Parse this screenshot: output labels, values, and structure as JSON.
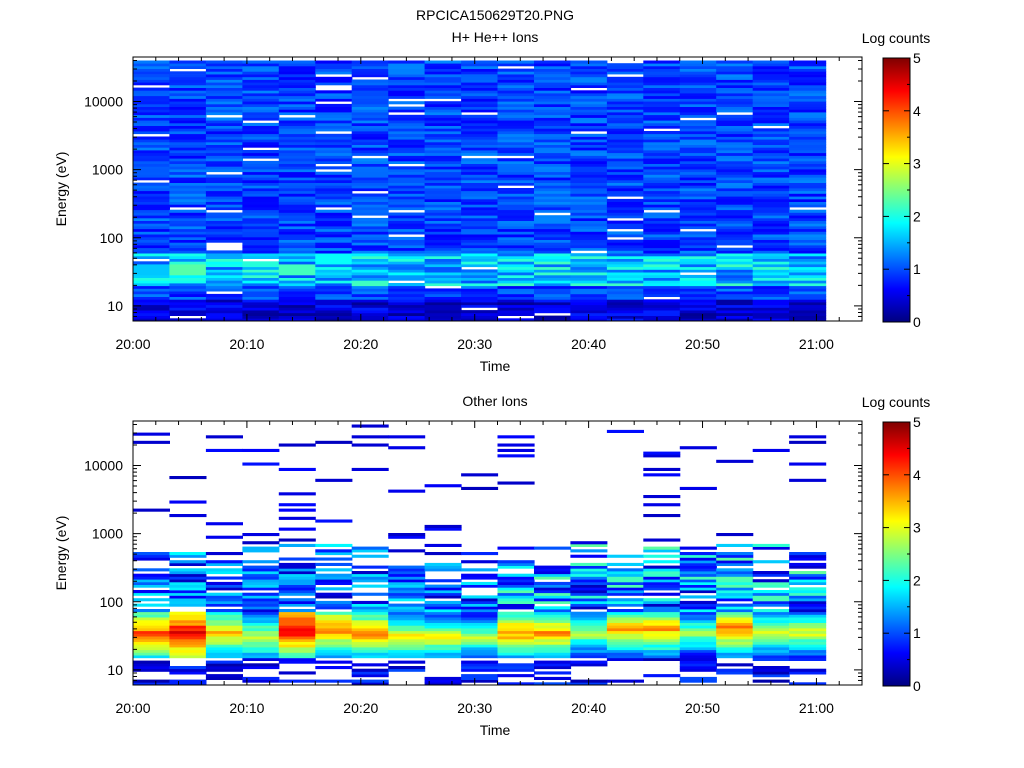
{
  "figure_title": "RPCICA150629T20.PNG",
  "colorbar_label": "Log counts",
  "colormap": [
    "#00007f",
    "#0000ff",
    "#007fff",
    "#00ffff",
    "#7fff7f",
    "#ffff00",
    "#ff7f00",
    "#ff0000",
    "#7f0000"
  ],
  "chart_data": [
    {
      "type": "heatmap",
      "title": "H+ He++ Ions",
      "xlabel": "Time",
      "ylabel": "Energy (eV)",
      "x_tick_labels": [
        "20:00",
        "20:10",
        "20:20",
        "20:30",
        "20:40",
        "20:50",
        "21:00"
      ],
      "x_range_minutes": [
        0,
        64
      ],
      "y_scale": "log",
      "y_tick_labels": [
        "10",
        "100",
        "1000",
        "10000"
      ],
      "y_range": [
        6,
        45000
      ],
      "colorbar": {
        "label": "Log counts",
        "range": [
          0,
          5
        ],
        "ticks": [
          "0",
          "1",
          "2",
          "3",
          "4",
          "5"
        ]
      },
      "n_time_bins": 19,
      "time_bin_minutes": 3.2,
      "n_energy_bins": 96,
      "energy_range_eV": [
        6,
        40000
      ],
      "note_data": "Each column is a 3.2 min spectrum; low-energy bins (10-60 eV) reach log counts ~1.5-2, higher energies ~0.5-1.2",
      "peak_bins": [
        {
          "time_bin": 1,
          "energy_eV": 35,
          "log_counts": 2.3
        },
        {
          "time_bin": 4,
          "energy_eV": 35,
          "log_counts": 2.2
        },
        {
          "time_bin": 5,
          "energy_eV": 50,
          "log_counts": 1.9
        },
        {
          "time_bin": 0,
          "energy_eV": 35,
          "log_counts": 1.6
        }
      ]
    },
    {
      "type": "heatmap",
      "title": "Other Ions",
      "xlabel": "Time",
      "ylabel": "Energy (eV)",
      "x_tick_labels": [
        "20:00",
        "20:10",
        "20:20",
        "20:30",
        "20:40",
        "20:50",
        "21:00"
      ],
      "x_range_minutes": [
        0,
        64
      ],
      "y_scale": "log",
      "y_tick_labels": [
        "10",
        "100",
        "1000",
        "10000"
      ],
      "y_range": [
        6,
        45000
      ],
      "colorbar": {
        "label": "Log counts",
        "range": [
          0,
          5
        ],
        "ticks": [
          "0",
          "1",
          "2",
          "3",
          "4",
          "5"
        ]
      },
      "n_time_bins": 19,
      "time_bin_minutes": 3.2,
      "band_peaks": [
        {
          "time_bin": 0,
          "energy_eV": 35,
          "log_counts": 4.0
        },
        {
          "time_bin": 1,
          "energy_eV": 35,
          "log_counts": 4.6
        },
        {
          "time_bin": 2,
          "energy_eV": 35,
          "log_counts": 3.5
        },
        {
          "time_bin": 3,
          "energy_eV": 30,
          "log_counts": 3.0
        },
        {
          "time_bin": 4,
          "energy_eV": 40,
          "log_counts": 4.6
        },
        {
          "time_bin": 5,
          "energy_eV": 40,
          "log_counts": 3.8
        },
        {
          "time_bin": 6,
          "energy_eV": 35,
          "log_counts": 3.7
        },
        {
          "time_bin": 7,
          "energy_eV": 30,
          "log_counts": 3.2
        },
        {
          "time_bin": 8,
          "energy_eV": 30,
          "log_counts": 3.1
        },
        {
          "time_bin": 9,
          "energy_eV": 30,
          "log_counts": 2.7
        },
        {
          "time_bin": 10,
          "energy_eV": 35,
          "log_counts": 3.7
        },
        {
          "time_bin": 11,
          "energy_eV": 35,
          "log_counts": 3.7
        },
        {
          "time_bin": 12,
          "energy_eV": 35,
          "log_counts": 2.8
        },
        {
          "time_bin": 13,
          "energy_eV": 40,
          "log_counts": 3.5
        },
        {
          "time_bin": 14,
          "energy_eV": 40,
          "log_counts": 3.6
        },
        {
          "time_bin": 15,
          "energy_eV": 35,
          "log_counts": 2.7
        },
        {
          "time_bin": 16,
          "energy_eV": 40,
          "log_counts": 3.8
        },
        {
          "time_bin": 17,
          "energy_eV": 35,
          "log_counts": 3.0
        },
        {
          "time_bin": 18,
          "energy_eV": 35,
          "log_counts": 3.0
        }
      ],
      "note_data": "Other ions show a strong band at 20-60 eV (log counts 3-4.6), moderate 60-700 eV, and sparse single-count streaks at higher energies"
    }
  ]
}
